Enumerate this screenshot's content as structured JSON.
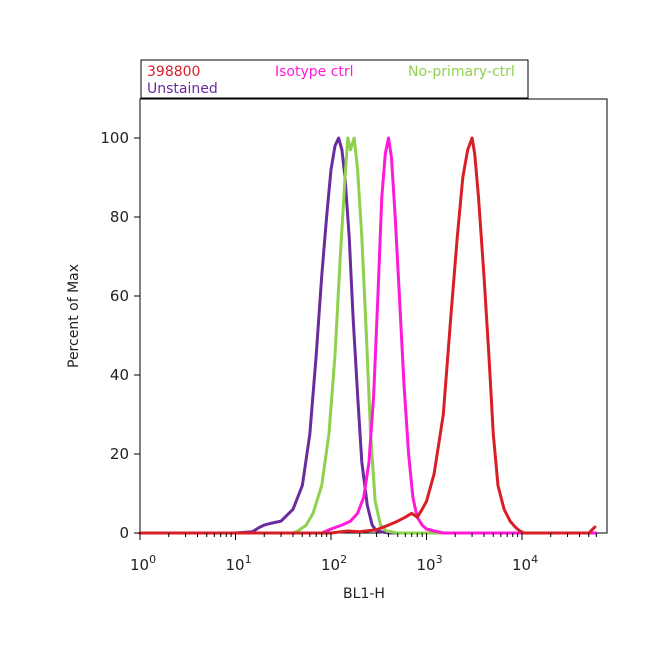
{
  "chart_data": {
    "type": "line",
    "title": "",
    "xlabel": "BL1-H",
    "ylabel": "Percent of Max",
    "x_scale": "log",
    "xlim": [
      1,
      60000
    ],
    "ylim": [
      0,
      105
    ],
    "grid": false,
    "legend_position": "top",
    "x_ticks": [
      {
        "value": 1,
        "base": "10",
        "exp": "0"
      },
      {
        "value": 10,
        "base": "10",
        "exp": "1"
      },
      {
        "value": 100,
        "base": "10",
        "exp": "2"
      },
      {
        "value": 1000,
        "base": "10",
        "exp": "3"
      },
      {
        "value": 10000,
        "base": "10",
        "exp": "4"
      }
    ],
    "y_ticks": [
      {
        "value": 0,
        "label": "0"
      },
      {
        "value": 20,
        "label": "20"
      },
      {
        "value": 40,
        "label": "40"
      },
      {
        "value": 60,
        "label": "60"
      },
      {
        "value": 80,
        "label": "80"
      },
      {
        "value": 100,
        "label": "100"
      }
    ],
    "series": [
      {
        "name": "Unstained",
        "color": "#6a2c9c",
        "x": [
          1,
          10,
          15,
          18,
          20,
          24,
          30,
          40,
          50,
          60,
          70,
          80,
          90,
          100,
          110,
          120,
          130,
          140,
          155,
          170,
          190,
          210,
          240,
          270,
          300,
          400,
          1000,
          10000,
          60000
        ],
        "y": [
          0,
          0,
          0.3,
          1.5,
          2,
          2.5,
          3,
          6,
          12,
          25,
          45,
          65,
          80,
          92,
          98,
          100,
          97,
          90,
          75,
          55,
          35,
          18,
          7,
          2,
          0.5,
          0,
          0,
          0,
          0
        ]
      },
      {
        "name": "No-primary-ctrl",
        "color": "#8fd14f",
        "x": [
          1,
          10,
          40,
          45,
          55,
          65,
          80,
          95,
          110,
          125,
          140,
          150,
          160,
          175,
          190,
          210,
          235,
          260,
          290,
          330,
          380,
          500,
          1000,
          10000,
          60000
        ],
        "y": [
          0,
          0,
          0,
          0.5,
          2,
          5,
          12,
          25,
          45,
          70,
          90,
          100,
          97,
          100,
          92,
          75,
          50,
          25,
          8,
          2,
          0.5,
          0,
          0,
          0,
          0
        ]
      },
      {
        "name": "Isotype ctrl",
        "color": "#ff1ad9",
        "x": [
          1,
          10,
          80,
          100,
          130,
          160,
          190,
          220,
          250,
          280,
          310,
          340,
          370,
          400,
          430,
          470,
          520,
          580,
          650,
          720,
          800,
          900,
          1000,
          1200,
          1500,
          2000,
          10000,
          60000
        ],
        "y": [
          0,
          0,
          0,
          1,
          2,
          3,
          5,
          9,
          18,
          35,
          60,
          85,
          96,
          100,
          95,
          80,
          60,
          38,
          20,
          9,
          4,
          2,
          1,
          0.5,
          0,
          0,
          0,
          0
        ]
      },
      {
        "name": "398800",
        "color": "#d91f26",
        "x": [
          1,
          10,
          100,
          150,
          200,
          300,
          400,
          500,
          600,
          700,
          800,
          900,
          1000,
          1200,
          1500,
          1800,
          2100,
          2400,
          2700,
          3000,
          3200,
          3500,
          4000,
          4500,
          5000,
          5600,
          6500,
          7500,
          8500,
          9500,
          10500,
          12000,
          20000,
          50000,
          58000
        ],
        "y": [
          0,
          0,
          0,
          0.5,
          0.3,
          0.8,
          2,
          3,
          4,
          5,
          4,
          6,
          8,
          15,
          30,
          55,
          75,
          90,
          97,
          100,
          96,
          85,
          65,
          45,
          25,
          12,
          6,
          3,
          1.5,
          0.5,
          0,
          0,
          0,
          0,
          1.5
        ]
      }
    ]
  },
  "legend": {
    "items": [
      {
        "label": "398800",
        "color": "#d91f26"
      },
      {
        "label": "Isotype ctrl",
        "color": "#ff1ad9"
      },
      {
        "label": "No-primary-ctrl",
        "color": "#8fd14f"
      },
      {
        "label": "Unstained",
        "color": "#6a2c9c"
      }
    ]
  }
}
